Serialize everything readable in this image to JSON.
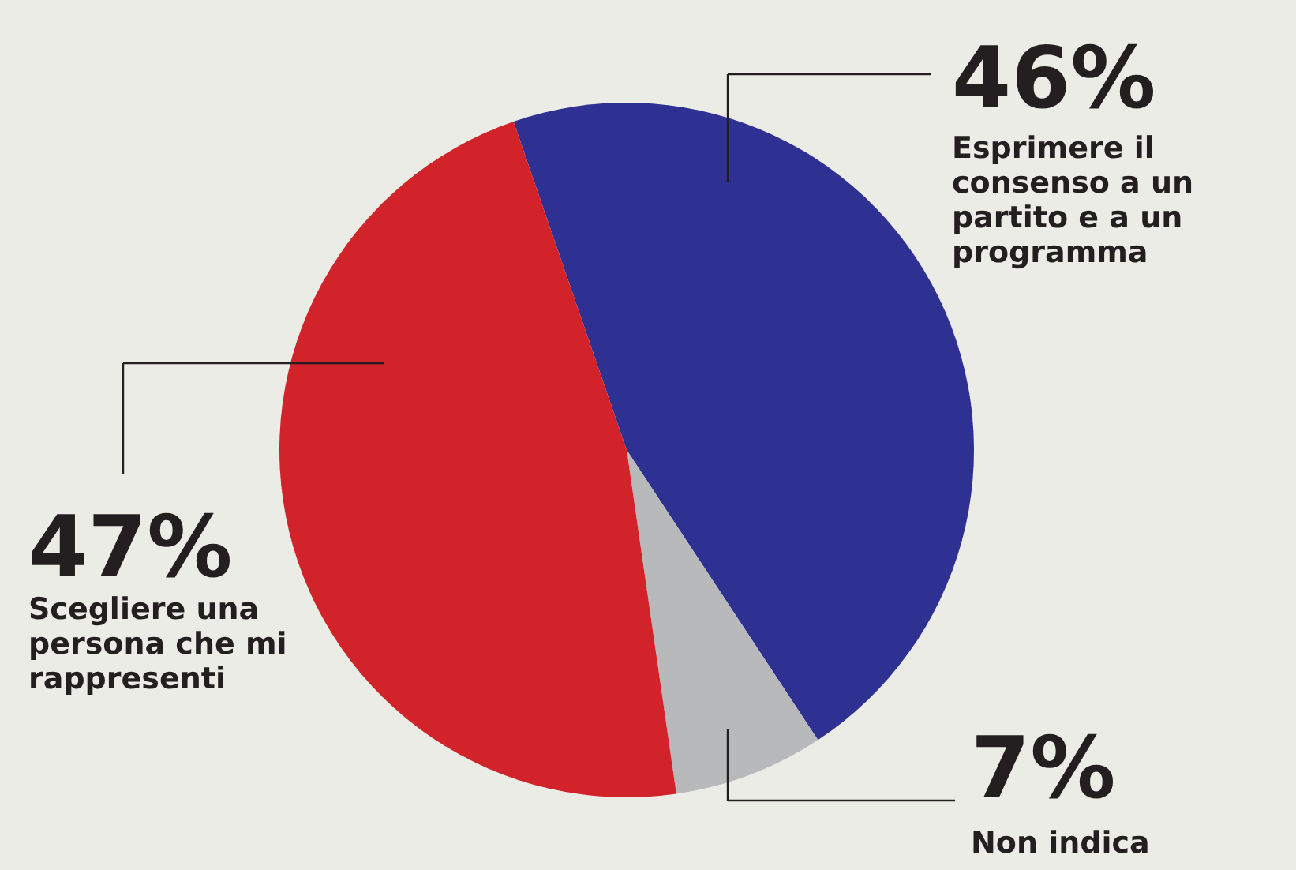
{
  "chart_data": {
    "type": "pie",
    "categories": [
      "Esprimere il consenso a un partito e a un programma",
      "Non indica",
      "Scegliere una persona che mi rappresenti"
    ],
    "values": [
      46,
      7,
      47
    ],
    "colors": [
      "#2e3192",
      "#b8b9bb",
      "#d2232a"
    ],
    "value_labels": [
      "46%",
      "7%",
      "47%"
    ]
  }
}
